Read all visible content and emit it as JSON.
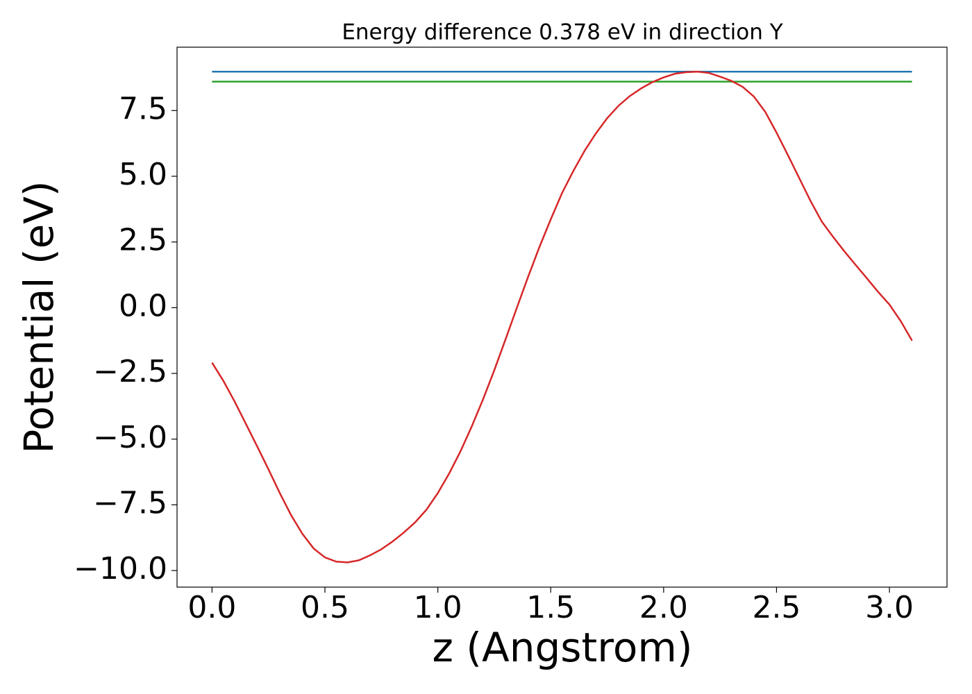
{
  "chart_data": {
    "type": "line",
    "title": "Energy difference 0.378 eV in direction Y",
    "xlabel": "z (Angstrom)",
    "ylabel": "Potential (eV)",
    "series": [
      {
        "color": "#1f77b4",
        "x": [
          0,
          3.1
        ],
        "values": [
          8.98,
          8.98
        ]
      },
      {
        "color": "#2ca02c",
        "x": [
          0,
          3.1
        ],
        "values": [
          8.6,
          8.6
        ]
      },
      {
        "color": "#d62728",
        "x": [
          0,
          0.05,
          0.1,
          0.15,
          0.2,
          0.25,
          0.3,
          0.35,
          0.4,
          0.45,
          0.5,
          0.55,
          0.6,
          0.65,
          0.7,
          0.75,
          0.8,
          0.85,
          0.9,
          0.95,
          1.0,
          1.05,
          1.1,
          1.15,
          1.2,
          1.25,
          1.3,
          1.35,
          1.4,
          1.45,
          1.5,
          1.55,
          1.6,
          1.65,
          1.7,
          1.75,
          1.8,
          1.85,
          1.9,
          1.95,
          2.0,
          2.05,
          2.1,
          2.15,
          2.2,
          2.25,
          2.3,
          2.35,
          2.4,
          2.45,
          2.5,
          2.55,
          2.6,
          2.65,
          2.7,
          2.75,
          2.8,
          2.85,
          2.9,
          2.95,
          3.0,
          3.05,
          3.1
        ],
        "values": [
          -2.09,
          -2.78,
          -3.57,
          -4.42,
          -5.28,
          -6.15,
          -7.05,
          -7.89,
          -8.6,
          -9.16,
          -9.5,
          -9.66,
          -9.69,
          -9.61,
          -9.42,
          -9.19,
          -8.89,
          -8.55,
          -8.16,
          -7.68,
          -7.05,
          -6.31,
          -5.47,
          -4.52,
          -3.49,
          -2.38,
          -1.2,
          0.0,
          1.18,
          2.31,
          3.36,
          4.36,
          5.2,
          5.97,
          6.63,
          7.21,
          7.68,
          8.05,
          8.34,
          8.58,
          8.76,
          8.9,
          8.96,
          8.98,
          8.93,
          8.79,
          8.63,
          8.4,
          8.03,
          7.45,
          6.66,
          5.81,
          4.94,
          4.07,
          3.28,
          2.7,
          2.15,
          1.63,
          1.12,
          0.6,
          0.12,
          -0.51,
          -1.25
        ]
      }
    ],
    "xlim": [
      -0.155,
      3.255
    ],
    "ylim": [
      -10.63,
      9.91
    ],
    "xticks": [
      {
        "value": 0,
        "label": "0.0"
      },
      0.5,
      {
        "value": 1,
        "label": "1.0"
      },
      1.5,
      {
        "value": 2,
        "label": "2.0"
      },
      2.5,
      {
        "value": 3,
        "label": "3.0"
      }
    ],
    "yticks": [
      {
        "value": -10,
        "label": "−10.0"
      },
      {
        "value": -7.5,
        "label": "−7.5"
      },
      {
        "value": -5,
        "label": "−5.0"
      },
      {
        "value": -2.5,
        "label": "−2.5"
      },
      {
        "value": 0,
        "label": "0.0"
      },
      2.5,
      {
        "value": 5,
        "label": "5.0"
      },
      7.5
    ]
  }
}
